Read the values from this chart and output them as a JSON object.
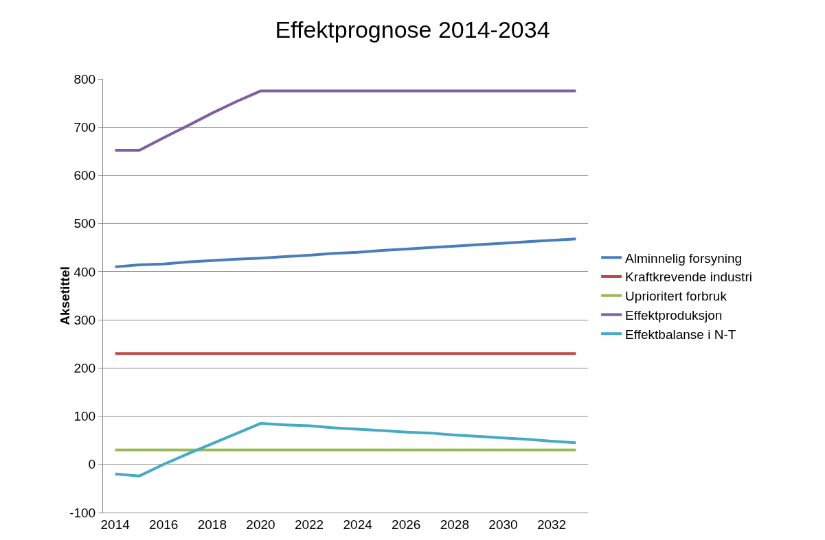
{
  "chart_data": {
    "type": "line",
    "title": "Effektprognose 2014-2034",
    "ylabel": "Aksetittel",
    "categories": [
      "2014",
      null,
      "2016",
      null,
      "2018",
      null,
      "2020",
      null,
      "2022",
      null,
      "2024",
      null,
      "2026",
      null,
      "2028",
      null,
      "2030",
      null,
      "2032",
      null
    ],
    "series": [
      {
        "name": "Alminnelig forsyning",
        "color": "#4a7ebb",
        "values": [
          410,
          414,
          416,
          420,
          423,
          426,
          428,
          431,
          434,
          438,
          440,
          444,
          447,
          450,
          453,
          456,
          459,
          462,
          465,
          468
        ]
      },
      {
        "name": "Kraftkrevende industri",
        "color": "#be4b48",
        "values": [
          230,
          230,
          230,
          230,
          230,
          230,
          230,
          230,
          230,
          230,
          230,
          230,
          230,
          230,
          230,
          230,
          230,
          230,
          230,
          230
        ]
      },
      {
        "name": "Uprioritert forbruk",
        "color": "#98b954",
        "values": [
          30,
          30,
          30,
          30,
          30,
          30,
          30,
          30,
          30,
          30,
          30,
          30,
          30,
          30,
          30,
          30,
          30,
          30,
          30,
          30
        ]
      },
      {
        "name": "Effektproduksjon",
        "color": "#7d60a0",
        "values": [
          652,
          652,
          678,
          703,
          729,
          753,
          775,
          775,
          775,
          775,
          775,
          775,
          775,
          775,
          775,
          775,
          775,
          775,
          775,
          775
        ]
      },
      {
        "name": "Effektbalanse i N-T",
        "color": "#46aac5",
        "values": [
          -20,
          -24,
          0,
          22,
          43,
          64,
          85,
          82,
          80,
          76,
          73,
          70,
          67,
          65,
          61,
          58,
          55,
          52,
          48,
          45
        ]
      }
    ],
    "ylim": [
      -100,
      800
    ],
    "yticks": [
      -100,
      0,
      100,
      200,
      300,
      400,
      500,
      600,
      700,
      800
    ],
    "grid": "y",
    "legend": "right",
    "marker": "none",
    "line_style": "solid"
  }
}
